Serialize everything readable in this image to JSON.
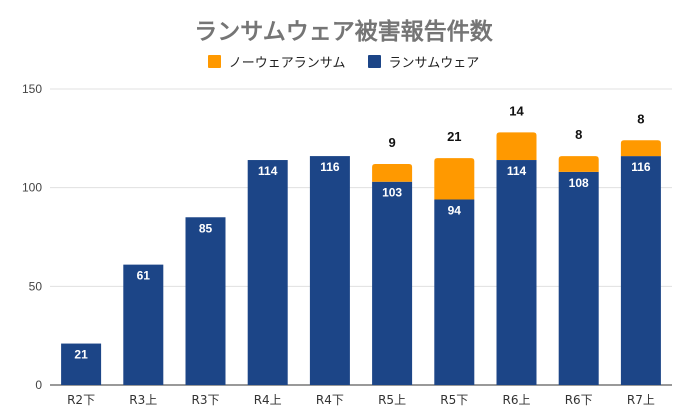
{
  "chart_data": {
    "type": "bar",
    "stacked": true,
    "title": "ランサムウェア被害報告件数",
    "xlabel": "",
    "ylabel": "",
    "ylim": [
      0,
      150
    ],
    "yticks": [
      0,
      50,
      100,
      150
    ],
    "grid": true,
    "legend_position": "top",
    "categories": [
      "R2下",
      "R3上",
      "R3下",
      "R4上",
      "R4下",
      "R5上",
      "R5下",
      "R6上",
      "R6下",
      "R7上"
    ],
    "series": [
      {
        "name": "ランサムウェア",
        "color": "#1c4587",
        "values": [
          21,
          61,
          85,
          114,
          116,
          103,
          94,
          114,
          108,
          116
        ]
      },
      {
        "name": "ノーウェアランサム",
        "color": "#ff9900",
        "values": [
          null,
          null,
          null,
          null,
          null,
          9,
          21,
          14,
          8,
          8
        ]
      }
    ],
    "legend": [
      "ノーウェアランサム",
      "ランサムウェア"
    ]
  }
}
